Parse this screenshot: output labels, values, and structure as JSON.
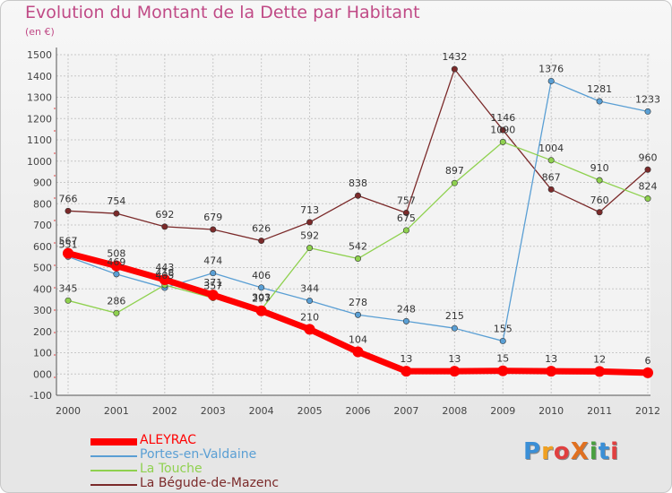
{
  "title": "Evolution du Montant de la Dette par Habitant",
  "unit": "(en €)",
  "chart_data": {
    "type": "line",
    "categories": [
      "2000",
      "2001",
      "2002",
      "2003",
      "2004",
      "2005",
      "2006",
      "2007",
      "2008",
      "2009",
      "2010",
      "2011",
      "2012"
    ],
    "ylim": [
      -100,
      1500
    ],
    "yticks": [
      -100,
      0,
      100,
      200,
      300,
      400,
      500,
      600,
      700,
      800,
      900,
      1000,
      1100,
      1200,
      1300,
      1400,
      1500
    ],
    "ytick_labels": [
      "-100",
      "000",
      "100",
      "200",
      "300",
      "400",
      "500",
      "600",
      "700",
      "800",
      "900",
      "1000",
      "1100",
      "1200",
      "1300",
      "1400",
      "1500"
    ],
    "grid": true,
    "legend_position": "bottom-left",
    "series": [
      {
        "name": "ALEYRAC",
        "color": "#ff0000",
        "values": [
          567,
          508,
          443,
          371,
          297,
          210,
          104,
          13,
          13,
          15,
          13,
          12,
          6
        ],
        "labels": [
          "567",
          "508",
          "443",
          "371",
          "297",
          "210",
          "104",
          "13",
          "13",
          "15",
          "13",
          "12",
          "6"
        ]
      },
      {
        "name": "Portes-en-Valdaine",
        "color": "#5a9fd4",
        "values": [
          551,
          469,
          405,
          474,
          406,
          344,
          278,
          248,
          215,
          155,
          1376,
          1281,
          1233
        ],
        "labels": [
          "551",
          "469",
          "405",
          "474",
          "406",
          "344",
          "278",
          "248",
          "215",
          "155",
          "1376",
          "1281",
          "1233"
        ]
      },
      {
        "name": "La Touche",
        "color": "#8fd14f",
        "values": [
          345,
          286,
          418,
          357,
          303,
          592,
          542,
          675,
          897,
          1090,
          1004,
          910,
          824
        ],
        "labels": [
          "345",
          "286",
          "418",
          "357",
          "303",
          "592",
          "542",
          "675",
          "897",
          "1090",
          "1004",
          "910",
          "824"
        ]
      },
      {
        "name": "La Bégude-de-Mazenc",
        "color": "#7b2a2a",
        "values": [
          766,
          754,
          692,
          679,
          626,
          713,
          838,
          757,
          1432,
          1146,
          867,
          760,
          960
        ],
        "labels": [
          "766",
          "754",
          "692",
          "679",
          "626",
          "713",
          "838",
          "757",
          "1432",
          "1146",
          "867",
          "760",
          "960"
        ]
      }
    ]
  },
  "logo": {
    "text": "ProXiti"
  }
}
